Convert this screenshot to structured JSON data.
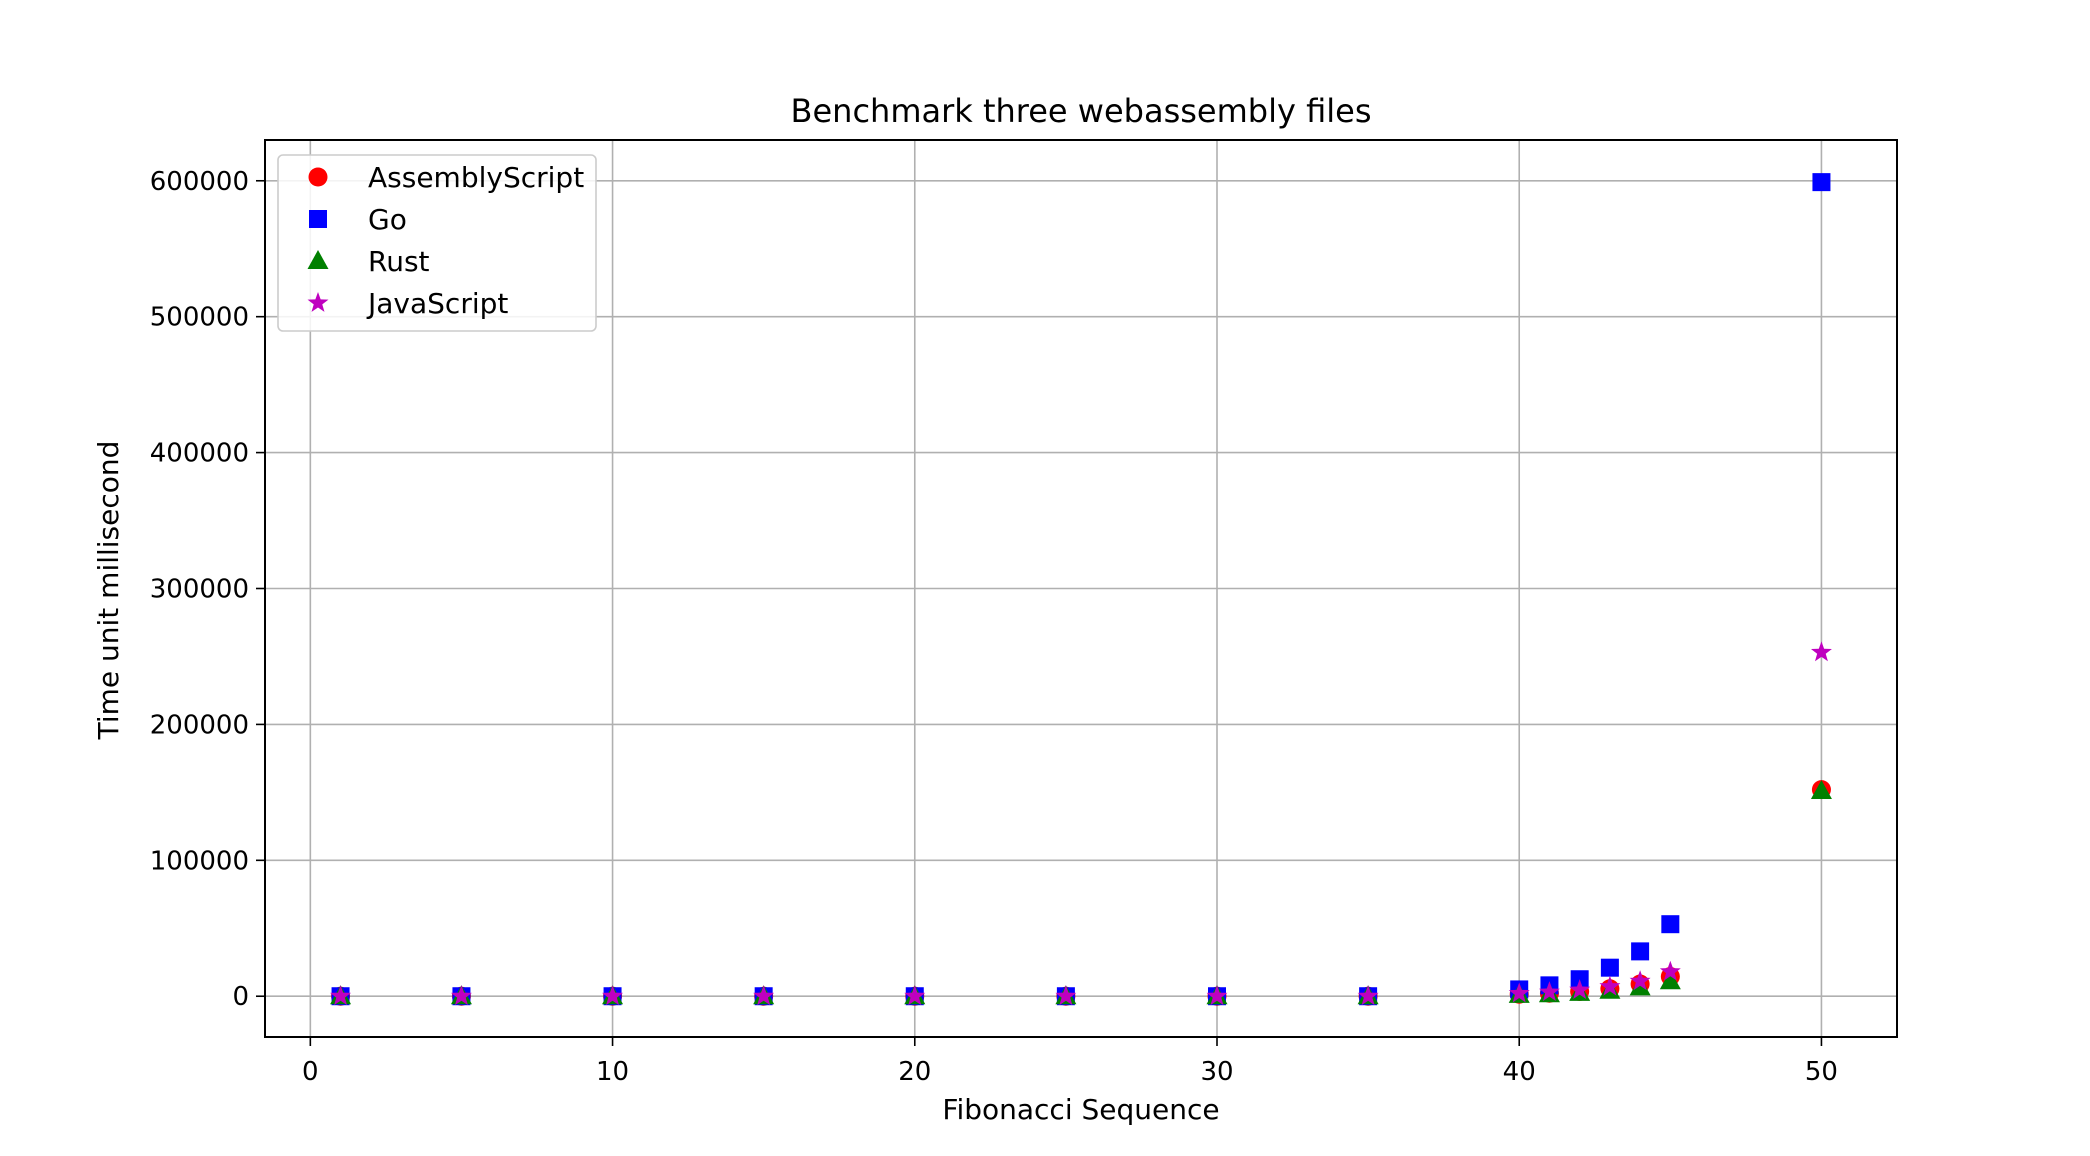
{
  "chart_data": {
    "type": "scatter",
    "title": "Benchmark three webassembly files",
    "xlabel": "Fibonacci Sequence",
    "ylabel": "Time unit millisecond",
    "xlim": [
      -1.5,
      52.5
    ],
    "ylim": [
      -30000,
      630000
    ],
    "xticks": [
      0,
      10,
      20,
      30,
      40,
      50
    ],
    "yticks": [
      0,
      100000,
      200000,
      300000,
      400000,
      500000,
      600000
    ],
    "grid": true,
    "legend_position": "top-left",
    "x": [
      1,
      5,
      10,
      15,
      20,
      25,
      30,
      35,
      40,
      41,
      42,
      43,
      44,
      45,
      50
    ],
    "series": [
      {
        "name": "AssemblyScript",
        "marker": "circle",
        "color": "#ff0000",
        "values": [
          0,
          0,
          0,
          0,
          0,
          0,
          0,
          0,
          1500,
          2200,
          3500,
          5500,
          9000,
          14500,
          152000
        ]
      },
      {
        "name": "Go",
        "marker": "square",
        "color": "#0000ff",
        "values": [
          0,
          0,
          0,
          0,
          0,
          0,
          0,
          0,
          5000,
          8000,
          12500,
          21000,
          33000,
          53000,
          599000
        ]
      },
      {
        "name": "Rust",
        "marker": "triangle",
        "color": "#008000",
        "values": [
          0,
          0,
          0,
          0,
          0,
          0,
          0,
          0,
          1000,
          1500,
          2500,
          4000,
          6500,
          11000,
          151000
        ]
      },
      {
        "name": "JavaScript",
        "marker": "star",
        "color": "#bf00bf",
        "values": [
          0,
          0,
          0,
          0,
          0,
          0,
          0,
          0,
          2000,
          3000,
          4500,
          7000,
          11000,
          18000,
          253000
        ]
      }
    ]
  }
}
